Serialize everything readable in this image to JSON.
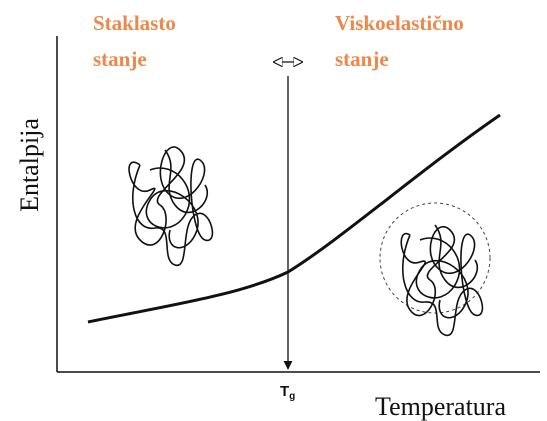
{
  "regions": {
    "glassy": {
      "line1": "Staklasto",
      "line2": "stanje"
    },
    "viscoelastic": {
      "line1": "Viskoelastično",
      "line2": "stanje"
    }
  },
  "axes": {
    "y_label": "Entalpija",
    "x_label": "Temperatura"
  },
  "transition": {
    "symbol": "T",
    "subscript": "g"
  }
}
